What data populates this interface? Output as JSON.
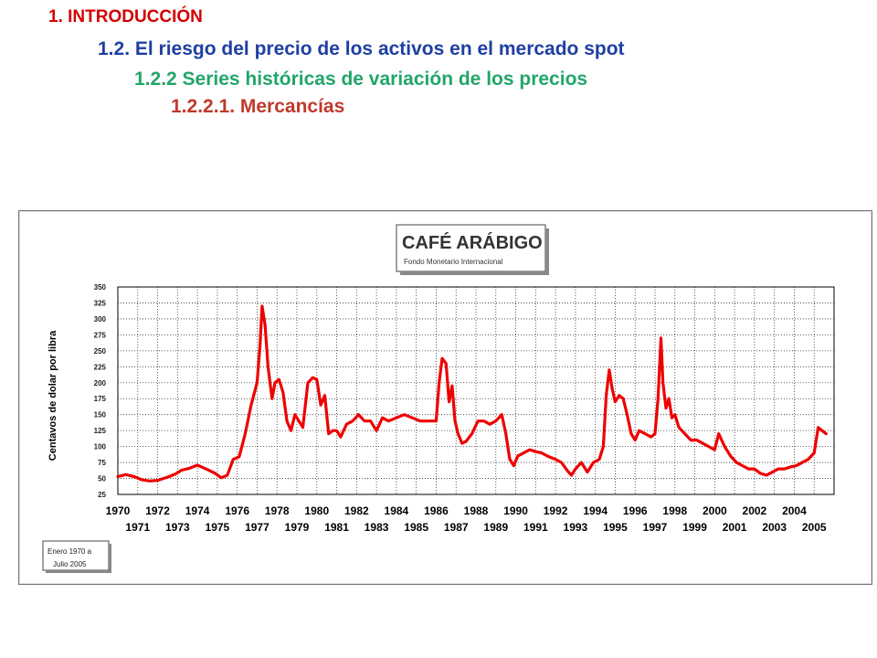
{
  "headings": {
    "h1": {
      "text": "1. INTRODUCCIÓN",
      "color": "#d40000"
    },
    "h2": {
      "text": "1.2. El riesgo del precio de los activos en el mercado spot",
      "color": "#1f3fa3"
    },
    "h3": {
      "text": "1.2.2 Series históricas de variación de los precios",
      "color": "#22a56a"
    },
    "h4": {
      "text": "1.2.2.1. Mercancías",
      "color": "#c0392b"
    }
  },
  "chart_data": {
    "type": "line",
    "title": "CAFÉ ARÁBIGO",
    "subtitle": "Fondo Monetario Internacional",
    "ylabel": "Centavos de dolar por libra",
    "xlabel": "",
    "note_line1": "Enero 1970 a",
    "note_line2": "Julio 2005",
    "ylim": [
      25,
      350
    ],
    "xlim": [
      1970,
      2006
    ],
    "yticks": [
      "25",
      "50",
      "75",
      "100",
      "125",
      "150",
      "175",
      "200",
      "225",
      "250",
      "275",
      "300",
      "325",
      "350"
    ],
    "xticks_top": [
      "1970",
      "1972",
      "1974",
      "1976",
      "1978",
      "1980",
      "1982",
      "1984",
      "1986",
      "1988",
      "1990",
      "1992",
      "1994",
      "1996",
      "1998",
      "2000",
      "2002",
      "2004"
    ],
    "xticks_bottom": [
      "1971",
      "1973",
      "1975",
      "1977",
      "1979",
      "1981",
      "1983",
      "1985",
      "1987",
      "1989",
      "1991",
      "1993",
      "1995",
      "1997",
      "1999",
      "2001",
      "2003",
      "2005"
    ],
    "grid": true,
    "line_color": "#ee0000",
    "series": [
      {
        "x": [
          1970.0,
          1970.4,
          1970.8,
          1971.2,
          1971.6,
          1972.0,
          1972.5,
          1972.9,
          1973.2,
          1973.6,
          1974.0,
          1974.5,
          1974.9,
          1975.2,
          1975.5,
          1975.8,
          1976.1,
          1976.4,
          1976.7,
          1977.0,
          1977.15,
          1977.25,
          1977.4,
          1977.55,
          1977.75,
          1977.9,
          1978.1,
          1978.3,
          1978.5,
          1978.7,
          1978.9,
          1979.1,
          1979.3,
          1979.55,
          1979.8,
          1980.0,
          1980.2,
          1980.4,
          1980.6,
          1980.8,
          1981.0,
          1981.2,
          1981.5,
          1981.8,
          1982.1,
          1982.4,
          1982.7,
          1983.0,
          1983.3,
          1983.6,
          1984.0,
          1984.4,
          1984.8,
          1985.2,
          1985.6,
          1985.9,
          1986.0,
          1986.15,
          1986.3,
          1986.5,
          1986.65,
          1986.8,
          1986.95,
          1987.1,
          1987.3,
          1987.5,
          1987.8,
          1988.1,
          1988.4,
          1988.7,
          1989.0,
          1989.3,
          1989.5,
          1989.7,
          1989.9,
          1990.1,
          1990.4,
          1990.7,
          1991.0,
          1991.3,
          1991.6,
          1992.0,
          1992.3,
          1992.6,
          1992.8,
          1993.0,
          1993.3,
          1993.6,
          1993.9,
          1994.2,
          1994.4,
          1994.55,
          1994.7,
          1994.85,
          1995.0,
          1995.2,
          1995.4,
          1995.6,
          1995.8,
          1996.0,
          1996.2,
          1996.5,
          1996.8,
          1997.0,
          1997.15,
          1997.3,
          1997.4,
          1997.55,
          1997.7,
          1997.85,
          1998.0,
          1998.2,
          1998.5,
          1998.8,
          1999.1,
          1999.4,
          1999.7,
          2000.0,
          2000.2,
          2000.5,
          2000.8,
          2001.1,
          2001.4,
          2001.7,
          2002.0,
          2002.3,
          2002.6,
          2002.9,
          2003.2,
          2003.5,
          2003.8,
          2004.1,
          2004.4,
          2004.7,
          2005.0,
          2005.2,
          2005.4,
          2005.6
        ],
        "y": [
          53,
          56,
          53,
          48,
          46,
          47,
          52,
          57,
          63,
          66,
          71,
          64,
          58,
          51,
          55,
          80,
          84,
          120,
          165,
          200,
          260,
          320,
          290,
          225,
          175,
          200,
          205,
          185,
          140,
          125,
          150,
          140,
          130,
          200,
          208,
          205,
          165,
          180,
          120,
          125,
          125,
          115,
          135,
          140,
          150,
          140,
          140,
          125,
          145,
          140,
          145,
          150,
          145,
          140,
          140,
          140,
          140,
          200,
          238,
          230,
          170,
          195,
          140,
          120,
          105,
          108,
          120,
          140,
          140,
          135,
          140,
          150,
          120,
          80,
          70,
          85,
          90,
          95,
          92,
          90,
          85,
          80,
          75,
          62,
          55,
          65,
          75,
          60,
          75,
          80,
          100,
          180,
          220,
          190,
          170,
          180,
          175,
          150,
          120,
          110,
          125,
          120,
          115,
          120,
          175,
          270,
          200,
          160,
          175,
          145,
          150,
          130,
          120,
          110,
          110,
          105,
          100,
          95,
          120,
          100,
          85,
          75,
          70,
          65,
          65,
          58,
          55,
          60,
          65,
          65,
          68,
          70,
          75,
          80,
          90,
          130,
          125,
          120
        ]
      }
    ]
  }
}
